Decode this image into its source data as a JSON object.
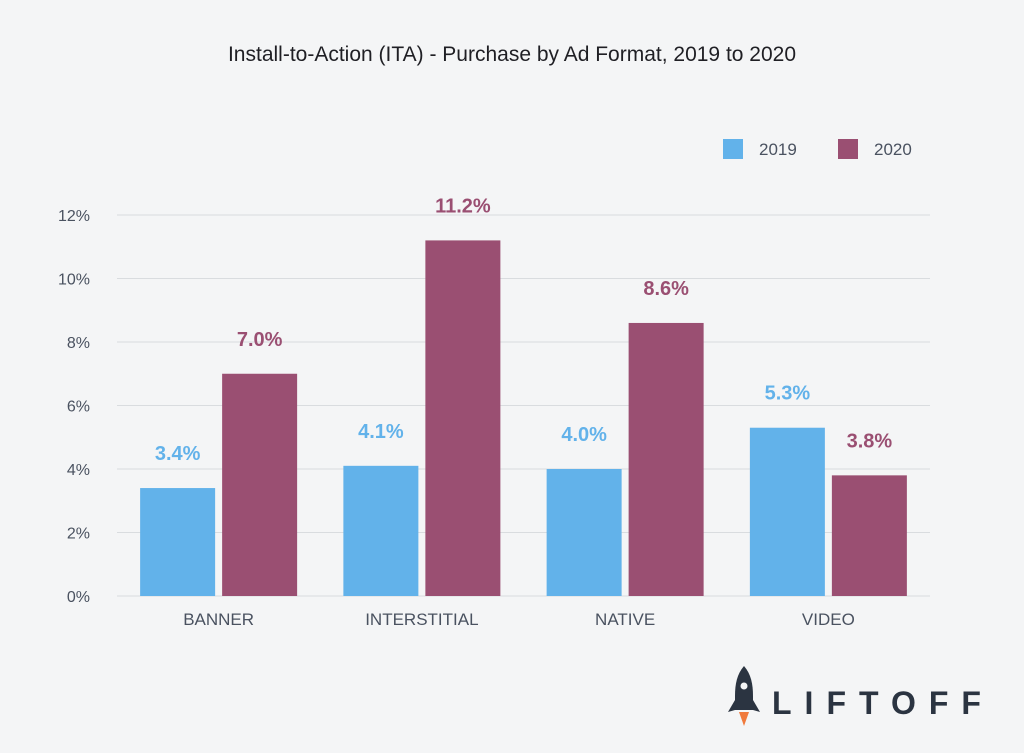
{
  "chart_data": {
    "type": "bar",
    "title": "Install-to-Action (ITA) - Purchase by Ad Format, 2019 to 2020",
    "xlabel": "",
    "ylabel": "",
    "categories": [
      "BANNER",
      "INTERSTITIAL",
      "NATIVE",
      "VIDEO"
    ],
    "series": [
      {
        "name": "2019",
        "color": "#62b2ea",
        "values": [
          3.4,
          4.1,
          4.0,
          5.3
        ],
        "labels": [
          "3.4%",
          "4.1%",
          "4.0%",
          "5.3%"
        ]
      },
      {
        "name": "2020",
        "color": "#9a4f72",
        "values": [
          7.0,
          11.2,
          8.6,
          3.8
        ],
        "labels": [
          "7.0%",
          "11.2%",
          "8.6%",
          "3.8%"
        ]
      }
    ],
    "ylim": [
      0,
      12
    ],
    "yticks": [
      0,
      2,
      4,
      6,
      8,
      10,
      12
    ],
    "ytick_labels": [
      "0%",
      "2%",
      "4%",
      "6%",
      "8%",
      "10%",
      "12%"
    ],
    "grid": true,
    "legend_position": "top-right"
  },
  "brand": {
    "name": "LIFTOFF",
    "logo_icon": "rocket-icon"
  }
}
